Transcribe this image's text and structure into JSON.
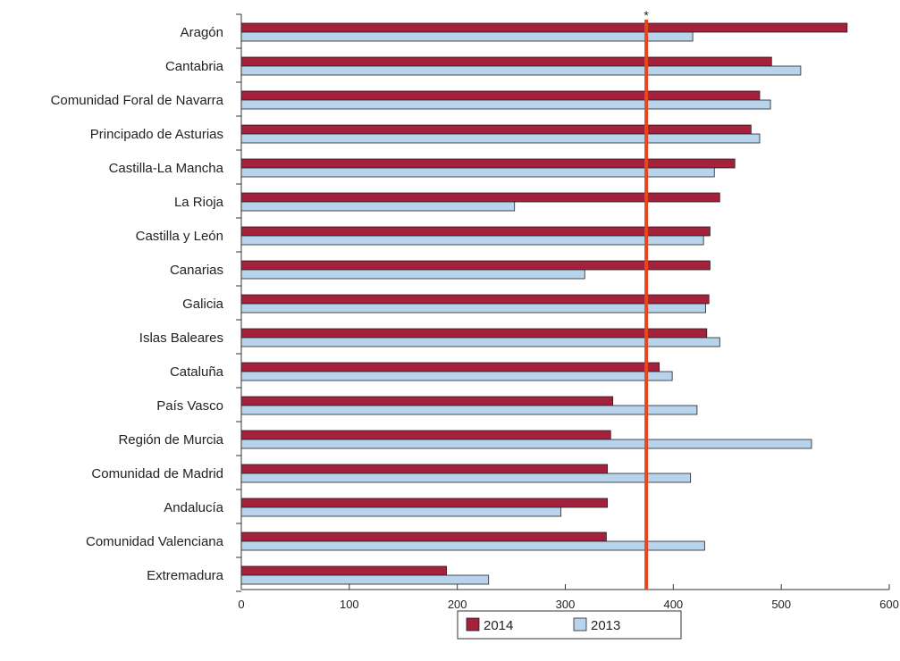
{
  "chart_data": {
    "type": "bar",
    "orientation": "horizontal",
    "categories": [
      "Aragón",
      "Cantabria",
      "Comunidad Foral de Navarra",
      "Principado de Asturias",
      "Castilla-La Mancha",
      "La Rioja",
      "Castilla y León",
      "Canarias",
      "Galicia",
      "Islas Baleares",
      "Cataluña",
      "País Vasco",
      "Región de Murcia",
      "Comunidad de Madrid",
      "Andalucía",
      "Comunidad Valenciana",
      "Extremadura"
    ],
    "series": [
      {
        "name": "2014",
        "color": "#a4213b",
        "values": [
          561,
          491,
          480,
          472,
          457,
          443,
          434,
          434,
          433,
          431,
          387,
          344,
          342,
          339,
          339,
          338,
          190
        ]
      },
      {
        "name": "2013",
        "color": "#b8d3ec",
        "values": [
          418,
          518,
          490,
          480,
          438,
          253,
          428,
          318,
          430,
          443,
          399,
          422,
          528,
          416,
          296,
          429,
          229
        ]
      }
    ],
    "xlim": [
      0,
      600
    ],
    "xticks": [
      0,
      100,
      200,
      300,
      400,
      500,
      600
    ],
    "reference_line": {
      "value": 375,
      "label": "*",
      "color": "#e8471e"
    },
    "legend_position": "bottom-center",
    "grid": false,
    "title": "",
    "xlabel": "",
    "ylabel": ""
  }
}
